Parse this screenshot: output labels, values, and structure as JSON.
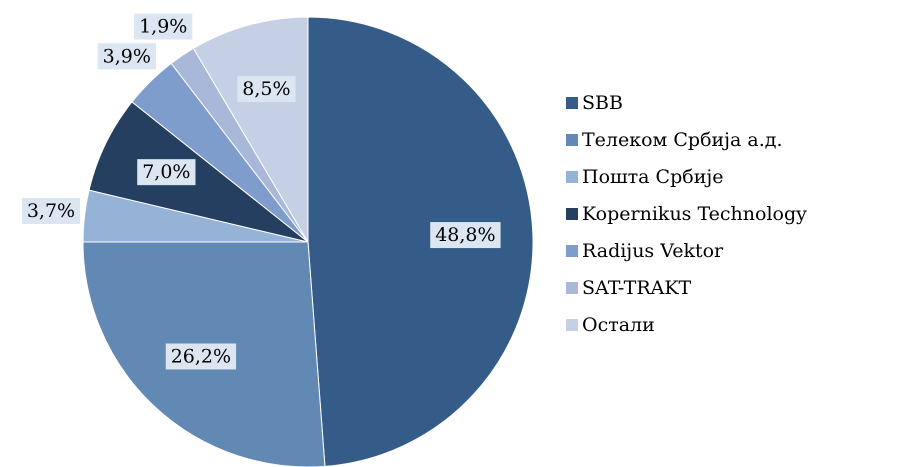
{
  "chart_data": {
    "type": "pie",
    "categories": [
      "SBB",
      "Телеком Србија а.д.",
      "Пошта Србије",
      "Kopernikus Technology",
      "Radijus Vektor",
      "SAT-TRAKT",
      "Остали"
    ],
    "values": [
      48.8,
      26.2,
      3.7,
      7.0,
      3.9,
      1.9,
      8.5
    ],
    "value_labels": [
      "48,8%",
      "26,2%",
      "3,7%",
      "7,0%",
      "3,9%",
      "1,9%",
      "8,5%"
    ],
    "colors": [
      "#355b88",
      "#6189b3",
      "#95b3d7",
      "#243f60",
      "#7f9dcc",
      "#a9b8d8",
      "#c5d0e4"
    ],
    "legend": "right"
  }
}
